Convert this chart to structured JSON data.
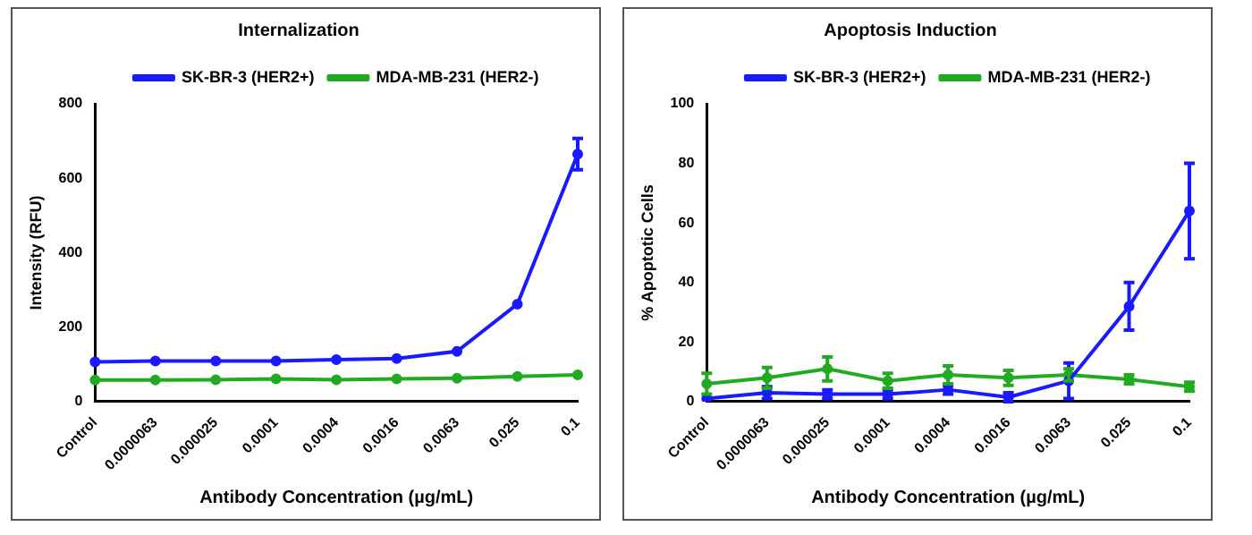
{
  "chart_data": [
    {
      "type": "line",
      "title": "Internalization",
      "xlabel": "Antibody Concentration (µg/mL)",
      "ylabel": "Intensity (RFU)",
      "categories": [
        "Control",
        "0.0000063",
        "0.000025",
        "0.0001",
        "0.0004",
        "0.0016",
        "0.0063",
        "0.025",
        "0.1"
      ],
      "series": [
        {
          "name": "SK-BR-3 (HER2+)",
          "color": "#1a1aff",
          "values": [
            107,
            109,
            109,
            109,
            113,
            116,
            135,
            262,
            665
          ],
          "errors": [
            null,
            null,
            null,
            null,
            null,
            null,
            null,
            null,
            42
          ]
        },
        {
          "name": "MDA-MB-231 (HER2-)",
          "color": "#22aa22",
          "values": [
            58,
            58,
            59,
            61,
            59,
            61,
            63,
            68,
            72
          ]
        }
      ],
      "ylim": [
        0,
        800
      ],
      "yticks": [
        0,
        200,
        400,
        600,
        800
      ],
      "grid": false,
      "legend": "top left",
      "marker": "circle"
    },
    {
      "type": "line",
      "title": "Apoptosis Induction",
      "xlabel": "Antibody Concentration (µg/mL)",
      "ylabel": "% Apoptotic Cells",
      "categories": [
        "Control",
        "0.0000063",
        "0.000025",
        "0.0001",
        "0.0004",
        "0.0016",
        "0.0063",
        "0.025",
        "0.1"
      ],
      "series": [
        {
          "name": "SK-BR-3 (HER2+)",
          "color": "#1a1aff",
          "values": [
            1,
            3,
            2.5,
            2.5,
            4,
            1.5,
            7,
            32,
            64
          ],
          "errors": [
            null,
            2,
            1.5,
            1.5,
            1.5,
            1.5,
            6,
            8,
            16
          ]
        },
        {
          "name": "MDA-MB-231 (HER2-)",
          "color": "#22aa22",
          "values": [
            6,
            8,
            11,
            7,
            9,
            8,
            9,
            7.5,
            5
          ],
          "errors": [
            3.5,
            3.5,
            4,
            2.5,
            3,
            2.5,
            2,
            1.5,
            1.5
          ]
        }
      ],
      "ylim": [
        0,
        100
      ],
      "yticks": [
        0,
        20,
        40,
        60,
        80,
        100
      ],
      "grid": false,
      "legend": "top left",
      "marker": "circle"
    }
  ]
}
